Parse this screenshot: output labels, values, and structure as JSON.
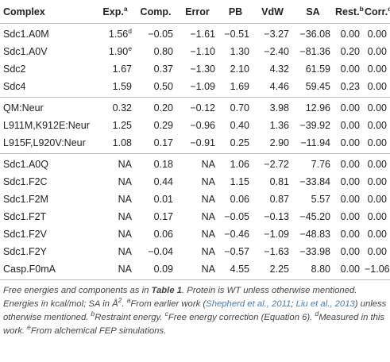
{
  "table": {
    "columns": [
      {
        "label": "Complex"
      },
      {
        "label": "Exp.",
        "note": "a"
      },
      {
        "label": "Comp."
      },
      {
        "label": "Error"
      },
      {
        "label": "PB"
      },
      {
        "label": "VdW"
      },
      {
        "label": "SA"
      },
      {
        "label": "Rest.",
        "note": "b"
      },
      {
        "label": "Corr.",
        "note": "c"
      }
    ],
    "groups": [
      {
        "rows": [
          [
            "Sdc1.A0M",
            {
              "text": "1.56",
              "note": "d"
            },
            "−0.05",
            "−1.61",
            "−0.51",
            "−3.27",
            "−36.08",
            "0.00",
            "0.00"
          ],
          [
            "Sdc1.A0V",
            {
              "text": "1.90",
              "note": "e"
            },
            "0.80",
            "−1.10",
            "1.30",
            "−2.40",
            "−81.36",
            "0.20",
            "0.00"
          ],
          [
            "Sdc2",
            "1.67",
            "0.37",
            "−1.30",
            "2.10",
            "4.32",
            "61.59",
            "0.00",
            "0.00"
          ],
          [
            "Sdc4",
            "1.59",
            "0.50",
            "−1.09",
            "1.69",
            "4.46",
            "59.45",
            "0.23",
            "0.00"
          ]
        ]
      },
      {
        "rows": [
          [
            "QM:Neur",
            "0.32",
            "0.20",
            "−0.12",
            "0.70",
            "3.98",
            "12.96",
            "0.00",
            "0.00"
          ],
          [
            "L911M,K912E:Neur",
            "1.25",
            "0.29",
            "−0.96",
            "0.40",
            "1.36",
            "−39.92",
            "0.00",
            "0.00"
          ],
          [
            "L915F,L920V:Neur",
            "1.08",
            "0.17",
            "−0.91",
            "0.25",
            "2.90",
            "−11.94",
            "0.00",
            "0.00"
          ]
        ]
      },
      {
        "rows": [
          [
            "Sdc1.A0Q",
            "NA",
            "0.18",
            "NA",
            "1.06",
            "−2.72",
            "7.76",
            "0.00",
            "0.00"
          ],
          [
            "Sdc1.F2C",
            "NA",
            "0.44",
            "NA",
            "1.15",
            "0.81",
            "−33.84",
            "0.00",
            "0.00"
          ],
          [
            "Sdc1.F2M",
            "NA",
            "0.01",
            "NA",
            "0.06",
            "0.87",
            "5.57",
            "0.00",
            "0.00"
          ],
          [
            "Sdc1.F2T",
            "NA",
            "0.17",
            "NA",
            "−0.05",
            "−0.13",
            "−45.20",
            "0.00",
            "0.00"
          ],
          [
            "Sdc1.F2V",
            "NA",
            "0.06",
            "NA",
            "−0.46",
            "−1.09",
            "−48.83",
            "0.00",
            "0.00"
          ],
          [
            "Sdc1.F2Y",
            "NA",
            "−0.04",
            "NA",
            "−0.57",
            "−1.63",
            "−33.98",
            "0.00",
            "0.00"
          ],
          [
            "Casp.F0mA",
            "NA",
            "0.09",
            "NA",
            "4.55",
            "2.25",
            "8.80",
            "0.00",
            "−1.06"
          ]
        ]
      }
    ],
    "footnote": [
      "Free energies and components as in ",
      "Table 1",
      ". Protein is WT unless otherwise mentioned. Energies in kcal/mol; SA in Å",
      "2",
      ". ",
      "a",
      "From earlier work (",
      "Shepherd et al., 2011",
      "; ",
      "Liu et al., 2013",
      ") unless otherwise mentioned. ",
      "b",
      "Restraint energy. ",
      "c",
      "Free energy correction (Equation 6). ",
      "d",
      "Measured in this work. ",
      "e",
      "From alchemical FEP simulations."
    ]
  }
}
